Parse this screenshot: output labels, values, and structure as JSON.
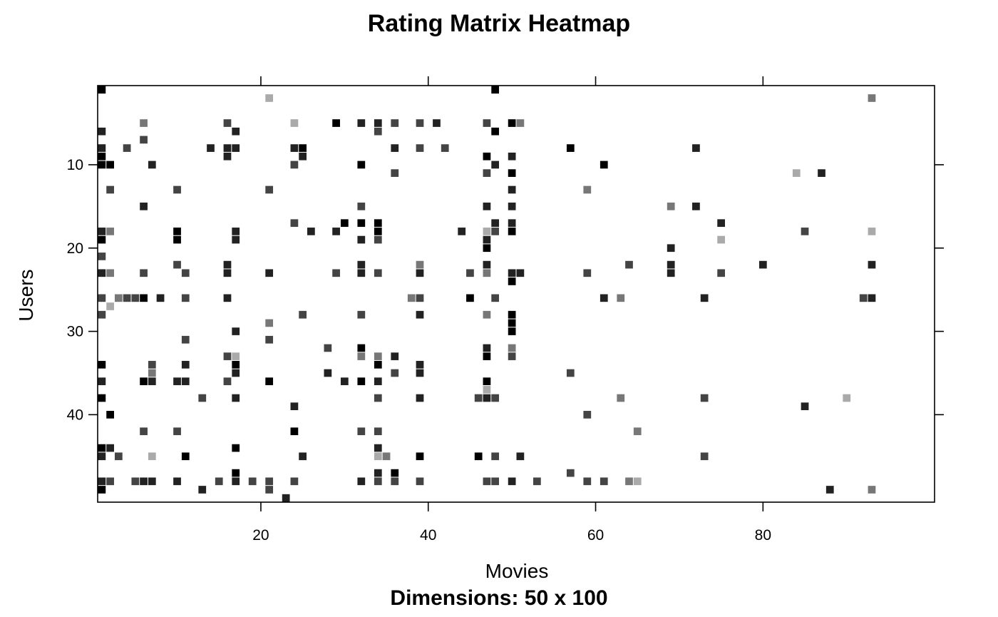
{
  "chart_data": {
    "type": "heatmap",
    "title": "Rating Matrix Heatmap",
    "subtitle": "Dimensions: 50 x 100",
    "xlabel": "Movies",
    "ylabel": "Users",
    "xlim": [
      0.5,
      100.5
    ],
    "ylim": [
      0.5,
      50.5
    ],
    "y_reversed": true,
    "x_ticks": [
      20,
      40,
      60,
      80
    ],
    "y_ticks": [
      10,
      20,
      30,
      40
    ],
    "colorscale": "grayscale, darker = higher rating",
    "levels": {
      "5": "#000000",
      "4": "#222222",
      "3": "#444444",
      "2": "#777777",
      "1": "#aaaaaa"
    },
    "cells": [
      [
        1,
        1,
        5
      ],
      [
        48,
        1,
        5
      ],
      [
        21,
        2,
        1
      ],
      [
        93,
        2,
        2
      ],
      [
        6,
        5,
        2
      ],
      [
        16,
        5,
        3
      ],
      [
        24,
        5,
        1
      ],
      [
        29,
        5,
        5
      ],
      [
        32,
        5,
        4
      ],
      [
        34,
        5,
        4
      ],
      [
        36,
        5,
        3
      ],
      [
        39,
        5,
        3
      ],
      [
        41,
        5,
        4
      ],
      [
        47,
        5,
        3
      ],
      [
        50,
        5,
        5
      ],
      [
        51,
        5,
        2
      ],
      [
        1,
        6,
        4
      ],
      [
        17,
        6,
        4
      ],
      [
        34,
        6,
        3
      ],
      [
        48,
        6,
        5
      ],
      [
        6,
        7,
        3
      ],
      [
        1,
        8,
        4
      ],
      [
        4,
        8,
        3
      ],
      [
        14,
        8,
        4
      ],
      [
        16,
        8,
        4
      ],
      [
        17,
        8,
        4
      ],
      [
        24,
        8,
        4
      ],
      [
        25,
        8,
        5
      ],
      [
        36,
        8,
        4
      ],
      [
        39,
        8,
        3
      ],
      [
        42,
        8,
        3
      ],
      [
        57,
        8,
        5
      ],
      [
        72,
        8,
        4
      ],
      [
        1,
        9,
        5
      ],
      [
        16,
        9,
        4
      ],
      [
        25,
        9,
        4
      ],
      [
        47,
        9,
        5
      ],
      [
        50,
        9,
        4
      ],
      [
        1,
        10,
        5
      ],
      [
        2,
        10,
        5
      ],
      [
        7,
        10,
        4
      ],
      [
        24,
        10,
        3
      ],
      [
        32,
        10,
        5
      ],
      [
        48,
        10,
        4
      ],
      [
        61,
        10,
        5
      ],
      [
        36,
        11,
        3
      ],
      [
        47,
        11,
        3
      ],
      [
        50,
        11,
        5
      ],
      [
        84,
        11,
        1
      ],
      [
        87,
        11,
        4
      ],
      [
        2,
        13,
        3
      ],
      [
        10,
        13,
        3
      ],
      [
        21,
        13,
        3
      ],
      [
        50,
        13,
        4
      ],
      [
        59,
        13,
        2
      ],
      [
        6,
        15,
        4
      ],
      [
        32,
        15,
        3
      ],
      [
        47,
        15,
        4
      ],
      [
        50,
        15,
        4
      ],
      [
        69,
        15,
        2
      ],
      [
        72,
        15,
        4
      ],
      [
        24,
        17,
        3
      ],
      [
        30,
        17,
        5
      ],
      [
        32,
        17,
        5
      ],
      [
        34,
        17,
        5
      ],
      [
        48,
        17,
        4
      ],
      [
        50,
        17,
        4
      ],
      [
        75,
        17,
        4
      ],
      [
        1,
        18,
        4
      ],
      [
        2,
        18,
        2
      ],
      [
        10,
        18,
        5
      ],
      [
        17,
        18,
        4
      ],
      [
        26,
        18,
        4
      ],
      [
        29,
        18,
        4
      ],
      [
        34,
        18,
        5
      ],
      [
        44,
        18,
        4
      ],
      [
        47,
        18,
        1
      ],
      [
        48,
        18,
        3
      ],
      [
        50,
        18,
        5
      ],
      [
        85,
        18,
        3
      ],
      [
        93,
        18,
        1
      ],
      [
        1,
        19,
        5
      ],
      [
        10,
        19,
        5
      ],
      [
        17,
        19,
        4
      ],
      [
        32,
        19,
        4
      ],
      [
        34,
        19,
        3
      ],
      [
        47,
        19,
        4
      ],
      [
        75,
        19,
        1
      ],
      [
        47,
        20,
        5
      ],
      [
        69,
        20,
        4
      ],
      [
        1,
        21,
        3
      ],
      [
        10,
        22,
        3
      ],
      [
        16,
        22,
        4
      ],
      [
        32,
        22,
        4
      ],
      [
        39,
        22,
        2
      ],
      [
        47,
        22,
        4
      ],
      [
        64,
        22,
        3
      ],
      [
        69,
        22,
        4
      ],
      [
        80,
        22,
        4
      ],
      [
        93,
        22,
        4
      ],
      [
        1,
        23,
        4
      ],
      [
        2,
        23,
        2
      ],
      [
        6,
        23,
        3
      ],
      [
        11,
        23,
        3
      ],
      [
        16,
        23,
        4
      ],
      [
        21,
        23,
        4
      ],
      [
        29,
        23,
        3
      ],
      [
        32,
        23,
        4
      ],
      [
        34,
        23,
        3
      ],
      [
        39,
        23,
        4
      ],
      [
        45,
        23,
        3
      ],
      [
        47,
        23,
        2
      ],
      [
        50,
        23,
        4
      ],
      [
        51,
        23,
        4
      ],
      [
        59,
        23,
        3
      ],
      [
        69,
        23,
        4
      ],
      [
        75,
        23,
        3
      ],
      [
        50,
        24,
        5
      ],
      [
        1,
        26,
        3
      ],
      [
        3,
        26,
        2
      ],
      [
        4,
        26,
        3
      ],
      [
        5,
        26,
        3
      ],
      [
        6,
        26,
        5
      ],
      [
        8,
        26,
        4
      ],
      [
        11,
        26,
        3
      ],
      [
        16,
        26,
        4
      ],
      [
        38,
        26,
        2
      ],
      [
        39,
        26,
        3
      ],
      [
        45,
        26,
        5
      ],
      [
        48,
        26,
        3
      ],
      [
        61,
        26,
        4
      ],
      [
        63,
        26,
        2
      ],
      [
        73,
        26,
        4
      ],
      [
        92,
        26,
        3
      ],
      [
        93,
        26,
        4
      ],
      [
        2,
        27,
        1
      ],
      [
        1,
        28,
        3
      ],
      [
        25,
        28,
        3
      ],
      [
        32,
        28,
        3
      ],
      [
        39,
        28,
        4
      ],
      [
        47,
        28,
        2
      ],
      [
        50,
        28,
        5
      ],
      [
        21,
        29,
        2
      ],
      [
        50,
        29,
        5
      ],
      [
        17,
        30,
        4
      ],
      [
        50,
        30,
        5
      ],
      [
        11,
        31,
        3
      ],
      [
        21,
        31,
        3
      ],
      [
        28,
        32,
        3
      ],
      [
        32,
        32,
        5
      ],
      [
        47,
        32,
        4
      ],
      [
        50,
        32,
        2
      ],
      [
        16,
        33,
        3
      ],
      [
        17,
        33,
        1
      ],
      [
        32,
        33,
        2
      ],
      [
        34,
        33,
        2
      ],
      [
        36,
        33,
        4
      ],
      [
        47,
        33,
        5
      ],
      [
        50,
        33,
        3
      ],
      [
        1,
        34,
        5
      ],
      [
        7,
        34,
        3
      ],
      [
        11,
        34,
        4
      ],
      [
        17,
        34,
        5
      ],
      [
        34,
        34,
        5
      ],
      [
        39,
        34,
        4
      ],
      [
        7,
        35,
        2
      ],
      [
        17,
        35,
        4
      ],
      [
        28,
        35,
        4
      ],
      [
        36,
        35,
        3
      ],
      [
        39,
        35,
        4
      ],
      [
        57,
        35,
        3
      ],
      [
        1,
        36,
        4
      ],
      [
        6,
        36,
        5
      ],
      [
        7,
        36,
        4
      ],
      [
        10,
        36,
        4
      ],
      [
        11,
        36,
        4
      ],
      [
        16,
        36,
        3
      ],
      [
        21,
        36,
        5
      ],
      [
        30,
        36,
        4
      ],
      [
        32,
        36,
        5
      ],
      [
        34,
        36,
        4
      ],
      [
        47,
        36,
        5
      ],
      [
        47,
        37,
        1
      ],
      [
        1,
        38,
        5
      ],
      [
        13,
        38,
        3
      ],
      [
        17,
        38,
        4
      ],
      [
        34,
        38,
        3
      ],
      [
        39,
        38,
        4
      ],
      [
        46,
        38,
        3
      ],
      [
        47,
        38,
        4
      ],
      [
        48,
        38,
        3
      ],
      [
        63,
        38,
        2
      ],
      [
        73,
        38,
        3
      ],
      [
        90,
        38,
        1
      ],
      [
        24,
        39,
        4
      ],
      [
        85,
        39,
        4
      ],
      [
        2,
        40,
        5
      ],
      [
        59,
        40,
        3
      ],
      [
        6,
        42,
        3
      ],
      [
        10,
        42,
        3
      ],
      [
        24,
        42,
        5
      ],
      [
        32,
        42,
        3
      ],
      [
        34,
        42,
        3
      ],
      [
        65,
        42,
        2
      ],
      [
        1,
        44,
        5
      ],
      [
        2,
        44,
        4
      ],
      [
        17,
        44,
        5
      ],
      [
        34,
        44,
        4
      ],
      [
        1,
        45,
        4
      ],
      [
        3,
        45,
        3
      ],
      [
        7,
        45,
        1
      ],
      [
        11,
        45,
        5
      ],
      [
        25,
        45,
        4
      ],
      [
        34,
        45,
        1
      ],
      [
        35,
        45,
        2
      ],
      [
        39,
        45,
        5
      ],
      [
        46,
        45,
        5
      ],
      [
        48,
        45,
        3
      ],
      [
        51,
        45,
        4
      ],
      [
        73,
        45,
        3
      ],
      [
        17,
        47,
        5
      ],
      [
        34,
        47,
        4
      ],
      [
        36,
        47,
        5
      ],
      [
        57,
        47,
        3
      ],
      [
        1,
        48,
        4
      ],
      [
        2,
        48,
        3
      ],
      [
        5,
        48,
        3
      ],
      [
        6,
        48,
        4
      ],
      [
        7,
        48,
        4
      ],
      [
        10,
        48,
        4
      ],
      [
        15,
        48,
        3
      ],
      [
        17,
        48,
        4
      ],
      [
        19,
        48,
        3
      ],
      [
        21,
        48,
        3
      ],
      [
        24,
        48,
        3
      ],
      [
        32,
        48,
        4
      ],
      [
        34,
        48,
        3
      ],
      [
        36,
        48,
        3
      ],
      [
        39,
        48,
        3
      ],
      [
        47,
        48,
        3
      ],
      [
        48,
        48,
        3
      ],
      [
        50,
        48,
        4
      ],
      [
        53,
        48,
        3
      ],
      [
        59,
        48,
        3
      ],
      [
        61,
        48,
        3
      ],
      [
        64,
        48,
        2
      ],
      [
        65,
        48,
        1
      ],
      [
        1,
        49,
        5
      ],
      [
        13,
        49,
        4
      ],
      [
        21,
        49,
        3
      ],
      [
        88,
        49,
        4
      ],
      [
        93,
        49,
        2
      ],
      [
        23,
        50,
        4
      ]
    ]
  }
}
